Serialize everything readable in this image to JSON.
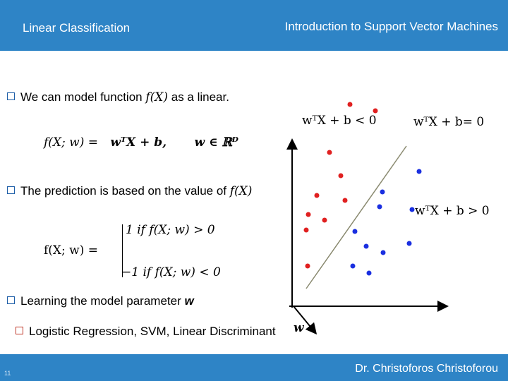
{
  "header": {
    "left_title": "Linear Classification",
    "right_title": "Introduction to Support Vector Machines"
  },
  "footer": {
    "page_number": "11",
    "author": "Dr. Christoforos Christoforou"
  },
  "bullets": {
    "b1_text": "We can model function ",
    "b1_math": "f(X)",
    "b1_tail": " as a linear.",
    "formula1_lhs": "f(X; w) =",
    "formula1_rhs": "wᵀX + b,",
    "formula1_domain": "w ∈ ℝᴰ",
    "b2_text": "The prediction is based on the value of ",
    "b2_math": "f(X)",
    "case_lhs": "f(X; w) =",
    "case1": "1  if f(X; w) > 0",
    "case2": "−1 if  f(X; w) < 0",
    "b3_text": "Learning the model parameter ",
    "b3_bold": "w",
    "sub1_text": "Logistic Regression, SVM, Linear Discriminant"
  },
  "plot": {
    "label_neg": "wᵀX + b < 0",
    "label_boundary": "wᵀX + b= 0",
    "label_pos": "wᵀX + b > 0",
    "label_w": "w",
    "colors": {
      "neg": "#e02020",
      "pos": "#1a2fe0",
      "line": "#8a8a70"
    }
  },
  "chart_data": {
    "type": "scatter",
    "title": "",
    "xlabel": "",
    "ylabel": "",
    "series": [
      {
        "name": "",
        "color": "#e02020",
        "points": [
          [
            82,
            286
          ],
          [
            118,
            277
          ],
          [
            53,
            218
          ],
          [
            69,
            185
          ],
          [
            35,
            157
          ],
          [
            75,
            150
          ],
          [
            23,
            130
          ],
          [
            46,
            122
          ],
          [
            20,
            108
          ],
          [
            22,
            57
          ]
        ]
      },
      {
        "name": "",
        "color": "#1a2fe0",
        "points": [
          [
            180,
            191
          ],
          [
            128,
            162
          ],
          [
            124,
            141
          ],
          [
            170,
            137
          ],
          [
            89,
            106
          ],
          [
            105,
            85
          ],
          [
            129,
            76
          ],
          [
            166,
            89
          ],
          [
            86,
            57
          ],
          [
            109,
            47
          ]
        ]
      }
    ],
    "boundary_line": [
      [
        20,
        25
      ],
      [
        162,
        227
      ]
    ]
  }
}
